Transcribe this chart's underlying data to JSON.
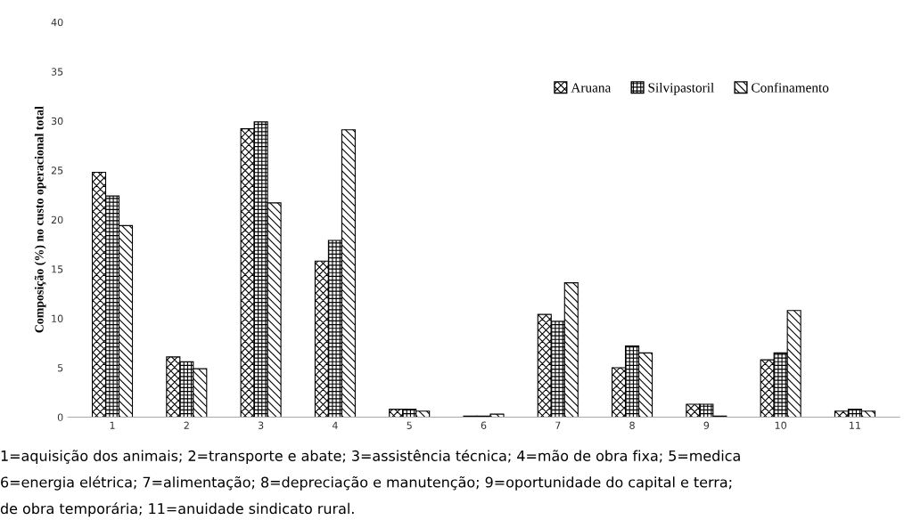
{
  "chart_data": {
    "type": "bar",
    "ylabel": "Composição (%) no custo operacional total",
    "categories": [
      "1",
      "2",
      "3",
      "4",
      "5",
      "6",
      "7",
      "8",
      "9",
      "10",
      "11"
    ],
    "series": [
      {
        "name": "Aruana",
        "color": "#000000",
        "values": [
          24.8,
          6.1,
          29.2,
          15.8,
          0.8,
          0.1,
          10.4,
          5.0,
          1.3,
          5.8,
          0.6
        ]
      },
      {
        "name": "Silvipastoril",
        "color": "#000000",
        "values": [
          22.4,
          5.6,
          29.9,
          17.9,
          0.8,
          0.1,
          9.7,
          7.2,
          1.3,
          6.5,
          0.8
        ]
      },
      {
        "name": "Confinamento",
        "color": "#000000",
        "values": [
          19.4,
          4.9,
          21.7,
          29.1,
          0.6,
          0.3,
          13.6,
          6.5,
          0.1,
          10.8,
          0.6
        ]
      }
    ],
    "ylim": [
      0,
      40
    ],
    "yticks": [
      0,
      5,
      10,
      15,
      20,
      25,
      30,
      35,
      40
    ],
    "grid": false,
    "legend": "top right",
    "annotations": [
      "1=aquisição dos animais; 2=transporte e abate; 3=assistência técnica; 4=mão de obra fixa; 5=medica",
      "6=energia elétrica; 7=alimentação; 8=depreciação e manutenção; 9=oportunidade do capital e terra;",
      "de obra temporária; 11=anuidade sindicato rural."
    ]
  }
}
